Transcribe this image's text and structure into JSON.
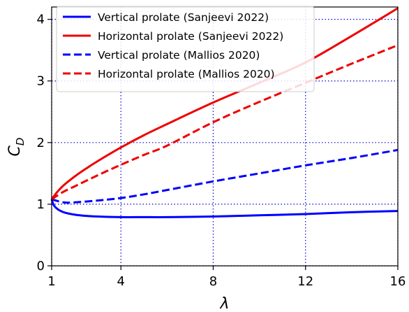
{
  "chart_data": {
    "type": "line",
    "title": "",
    "xlabel": "λ",
    "ylabel": "C",
    "ylabel_sub": "D",
    "xlim": [
      1,
      16
    ],
    "ylim": [
      0,
      4.2
    ],
    "xticks": [
      1,
      4,
      8,
      12,
      16
    ],
    "yticks": [
      0,
      1,
      2,
      3,
      4
    ],
    "xtick_labels": [
      "1",
      "4",
      "8",
      "12",
      "16"
    ],
    "ytick_labels": [
      "0",
      "1",
      "2",
      "3",
      "4"
    ],
    "grid": true,
    "grid_color": "#0000cc",
    "legend_position": "top-left",
    "series": [
      {
        "name": "Vertical prolate (Sanjeevi 2022)",
        "color": "#0000ff",
        "dash": "solid",
        "x": [
          1,
          1.1,
          1.3,
          1.6,
          2,
          2.5,
          3,
          4,
          5,
          6,
          8,
          10,
          12,
          14,
          16
        ],
        "y": [
          1.08,
          0.98,
          0.91,
          0.86,
          0.83,
          0.81,
          0.8,
          0.79,
          0.79,
          0.79,
          0.8,
          0.82,
          0.84,
          0.87,
          0.89
        ]
      },
      {
        "name": "Horizontal prolate (Sanjeevi 2022)",
        "color": "#ee0000",
        "dash": "solid",
        "x": [
          1,
          1.2,
          1.5,
          2,
          2.5,
          3,
          4,
          5,
          6,
          8,
          10,
          12,
          14,
          16
        ],
        "y": [
          1.08,
          1.18,
          1.3,
          1.45,
          1.58,
          1.7,
          1.92,
          2.12,
          2.3,
          2.65,
          2.97,
          3.3,
          3.73,
          4.18
        ]
      },
      {
        "name": "Vertical prolate (Mallios 2020)",
        "color": "#0000ff",
        "dash": "dashed",
        "x": [
          1,
          1.5,
          2,
          3,
          4,
          5,
          6,
          8,
          10,
          12,
          14,
          16
        ],
        "y": [
          1.08,
          1.03,
          1.03,
          1.06,
          1.1,
          1.16,
          1.23,
          1.37,
          1.5,
          1.63,
          1.75,
          1.88
        ]
      },
      {
        "name": "Horizontal prolate (Mallios 2020)",
        "color": "#ee0000",
        "dash": "dashed",
        "x": [
          1,
          1.5,
          2,
          3,
          4,
          5,
          6,
          8,
          10,
          12,
          14,
          16
        ],
        "y": [
          1.08,
          1.2,
          1.29,
          1.47,
          1.64,
          1.8,
          1.95,
          2.33,
          2.66,
          2.97,
          3.28,
          3.58
        ]
      }
    ]
  }
}
